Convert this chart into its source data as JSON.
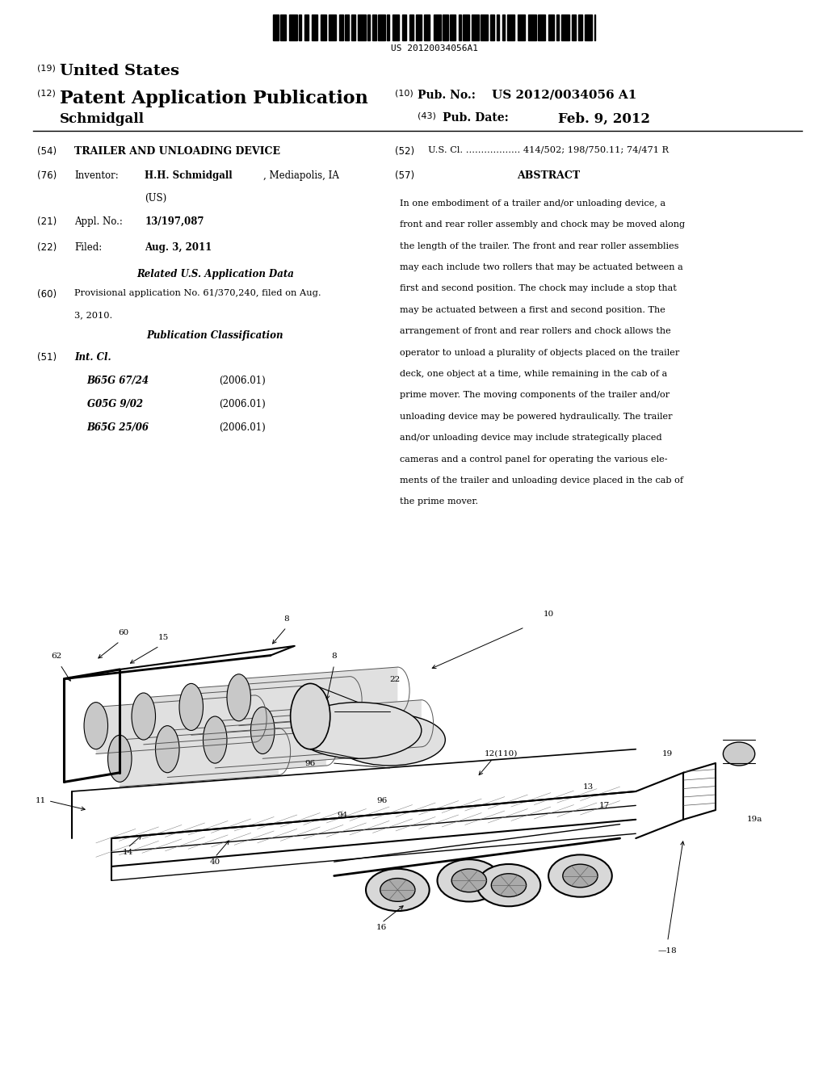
{
  "bg_color": "#ffffff",
  "barcode_text": "US 20120034056A1",
  "line19_label": "(19)",
  "line19_text": "United States",
  "line12_label": "(12)",
  "line12_text": "Patent Application Publication",
  "line12_right_label": "(10)",
  "line12_right_text": "Pub. No.:",
  "line12_right_value": "US 2012/0034056 A1",
  "author": "Schmidgall",
  "line43_label": "(43)",
  "line43_text": "Pub. Date:",
  "line43_value": "Feb. 9, 2012",
  "field54_label": "(54)",
  "field54_title": "TRAILER AND UNLOADING DEVICE",
  "field52_label": "(52)",
  "field52_text": "U.S. Cl. .................. 414/502; 198/750.11; 74/471 R",
  "field76_label": "(76)",
  "field76_key": "Inventor:",
  "field57_label": "(57)",
  "field57_title": "ABSTRACT",
  "field21_label": "(21)",
  "field21_key": "Appl. No.:",
  "field21_value": "13/197,087",
  "field22_label": "(22)",
  "field22_key": "Filed:",
  "field22_value": "Aug. 3, 2011",
  "related_title": "Related U.S. Application Data",
  "field60_label": "(60)",
  "pub_class_title": "Publication Classification",
  "field51_label": "(51)",
  "field51_key": "Int. Cl.",
  "field51_entries": [
    [
      "B65G 67/24",
      "(2006.01)"
    ],
    [
      "G05G 9/02",
      "(2006.01)"
    ],
    [
      "B65G 25/06",
      "(2006.01)"
    ]
  ],
  "abstract_lines": [
    "In one embodiment of a trailer and/or unloading device, a",
    "front and rear roller assembly and chock may be moved along",
    "the length of the trailer. The front and rear roller assemblies",
    "may each include two rollers that may be actuated between a",
    "first and second position. The chock may include a stop that",
    "may be actuated between a first and second position. The",
    "arrangement of front and rear rollers and chock allows the",
    "operator to unload a plurality of objects placed on the trailer",
    "deck, one object at a time, while remaining in the cab of a",
    "prime mover. The moving components of the trailer and/or",
    "unloading device may be powered hydraulically. The trailer",
    "and/or unloading device may include strategically placed",
    "cameras and a control panel for operating the various ele-",
    "ments of the trailer and unloading device placed in the cab of",
    "the prime mover."
  ]
}
